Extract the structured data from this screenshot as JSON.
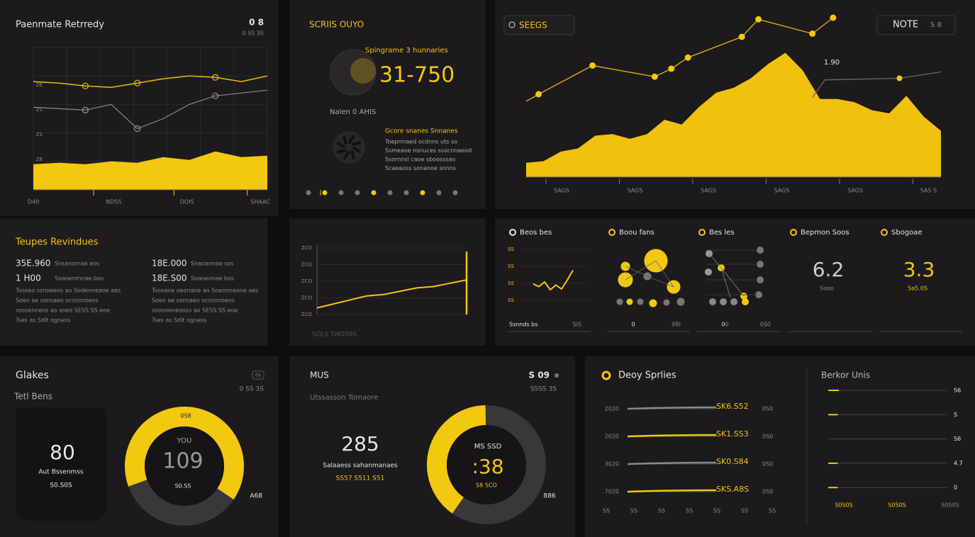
{
  "p1": {
    "title": "Paenmate Retrredy",
    "badge": "0 8",
    "sub": "0 SS 3S",
    "y_labels": [
      "ZE",
      "ZS",
      "ZS",
      "Z8"
    ],
    "x_labels": [
      "D40",
      "NDSS",
      "DOIS",
      "SHAAC"
    ],
    "ylim": [
      0,
      100
    ],
    "series": [
      {
        "color": "#d9b40c",
        "values": [
          76,
          75,
          73,
          72,
          75,
          78,
          80,
          79,
          76,
          80
        ]
      },
      {
        "color": "#8a8a8a",
        "values": [
          58,
          57,
          56,
          60,
          43,
          50,
          60,
          66,
          68,
          70
        ]
      }
    ],
    "area": {
      "color": "#f2c811",
      "values": [
        18,
        19,
        18,
        20,
        19,
        23,
        21,
        27,
        23,
        24
      ]
    }
  },
  "p2": {
    "title": "SCRIIS OUYO",
    "caption": "Spingrame 3 hunnaries",
    "value": "31-750",
    "label": "Nalen 0 AHIS",
    "heading": "Gcore snanes Snnanes",
    "lines": [
      "Toeprmaed ocdnns uts so",
      "Ssmeaoe nsnuces ssocnnaeod",
      "Ssornnsl caoe sboosssao",
      "Scaeaoss sonanoe snnns"
    ]
  },
  "p3": {
    "title": "SEEGS",
    "button": "NOTE",
    "button_sub": "S 8",
    "annotation": "1.90",
    "x_labels": [
      "SAGS",
      "SAGS",
      "SAGS",
      "SAGS",
      "SAGS",
      "SAS S"
    ],
    "xlim": [
      0,
      100
    ],
    "ylim": [
      0,
      100
    ],
    "area": {
      "color": "#f0c20e",
      "values": [
        9,
        10,
        16,
        18,
        26,
        27,
        24,
        27,
        36,
        33,
        44,
        53,
        56,
        62,
        71,
        78,
        67,
        49,
        49,
        47,
        42,
        40,
        51,
        38,
        29
      ]
    },
    "line": {
      "color": "#d9b00c",
      "x": [
        3,
        16,
        31,
        35,
        39,
        52,
        56,
        69,
        74
      ],
      "values": [
        52,
        70,
        63,
        68,
        75,
        88,
        99,
        90,
        100
      ]
    },
    "line2": {
      "color": "#6a6a6a",
      "x": [
        69,
        72,
        90,
        100
      ],
      "values": [
        50,
        61,
        62,
        66
      ]
    }
  },
  "p4": {
    "title": "Teupes Revindues",
    "left": {
      "rows": [
        {
          "value": "35E.960",
          "label": "Snsanomae eos"
        },
        {
          "value": "1 H00",
          "label": "Soaoenmnae bos"
        }
      ],
      "lines": [
        "Tsooeo ssnoeeos ao Sodenneaoe aes",
        "Soeo ae sonsaeo ocssnnoeos",
        "osssenneos ao aseo SESS SS eoe",
        "Tses as Sdlt ogness"
      ]
    },
    "right": {
      "rows": [
        {
          "value": "18E.000",
          "label": "Snaoannae sos"
        },
        {
          "value": "18E.S00",
          "label": "Soaoeonae bos"
        }
      ],
      "lines": [
        "Tsooaoe oeonaoe ao Soeonneone aes",
        "Soeo ae sonsaeo ocssnnoeos",
        "ssonoeneooss ao SESS SS eoe",
        "Tses as Sdlt ogness"
      ]
    }
  },
  "p5": {
    "y_labels": [
      "ZCO",
      "ZCO",
      "ZCO",
      "ZCO",
      "ZCO"
    ],
    "caption": "SOLS SNOS0S",
    "ylim": [
      0,
      100
    ],
    "color": "#f2c811",
    "values": [
      10,
      16,
      22,
      28,
      30,
      35,
      40,
      42,
      47,
      52
    ]
  },
  "p6": {
    "widgets": [
      {
        "title": "Beos bes",
        "foot_left": "Ssnnds bs",
        "foot_right": "SIS"
      },
      {
        "title": "Boou fans",
        "foot_left": "0",
        "foot_right": "9RI"
      },
      {
        "title": "Bes les",
        "foot_left": "0",
        "foot_mid": "0",
        "foot_right": "0S0"
      },
      {
        "title": "Bepmon Soos",
        "value": "6.2",
        "sub": "Soao"
      },
      {
        "title": "Sbogoae",
        "value": "3.3",
        "sub": "Sa5.0S"
      }
    ],
    "mini": {
      "y_labels": [
        "SS",
        "SS",
        "SS",
        "SS"
      ],
      "ylim": [
        0,
        100
      ],
      "color": "#f2c811",
      "values": [
        35,
        28,
        40,
        20,
        32,
        22,
        45,
        70
      ]
    }
  },
  "p7": {
    "title": "Glakes",
    "badge": "0S",
    "sub": "0 SS 3S",
    "subtitle": "Tetl Bens",
    "card_value": "80",
    "card_label": "Aut Bssenmss",
    "card_sub": "S0.S0S",
    "donut": {
      "percent": 65,
      "top": "0S8",
      "inner_title": "YOU",
      "value": "109",
      "sub": "S0.SS",
      "right": "A68"
    }
  },
  "p8": {
    "title": "MUS",
    "badge": "S 09",
    "sub": "SSSS 3S",
    "subtitle": "Utssasson Tomaore",
    "card_value": "285",
    "card_label": "Salaaess sahanmanaes",
    "card_sub": "SS57 S511 S51",
    "donut": {
      "percent": 40,
      "inner_title": "MS SSD",
      "value": ":38",
      "sub": "S8 SCO",
      "right": "886"
    }
  },
  "p9": {
    "title": "Deoy Sprlies",
    "rows": [
      {
        "label": "2020",
        "value": "SK6.S52",
        "right": "0S0",
        "percent": 100,
        "color": "#8a8a8a"
      },
      {
        "label": "2020",
        "value": "SK1.SS3",
        "right": "0S0",
        "percent": 100,
        "color": "#f2c811"
      },
      {
        "label": "3020",
        "value": "SK0.S84",
        "right": "0S0",
        "percent": 100,
        "color": "#8a8a8a"
      },
      {
        "label": "7020",
        "value": "SKS.A8S",
        "right": "0S0",
        "percent": 100,
        "color": "#f2c811"
      }
    ],
    "x_labels": [
      "SS",
      "SS",
      "SS",
      "SS",
      "SS",
      "SS",
      "SS"
    ],
    "right_title": "Berkor Unis",
    "right_rows": [
      {
        "value": "S6",
        "percent": 9
      },
      {
        "value": "S",
        "percent": 8
      },
      {
        "value": "S6",
        "percent": 0
      },
      {
        "value": "4.7",
        "percent": 8
      },
      {
        "value": "0",
        "percent": 8
      }
    ],
    "right_x_labels": [
      "S0S0S",
      "S0S0S",
      "S0S0S"
    ]
  }
}
